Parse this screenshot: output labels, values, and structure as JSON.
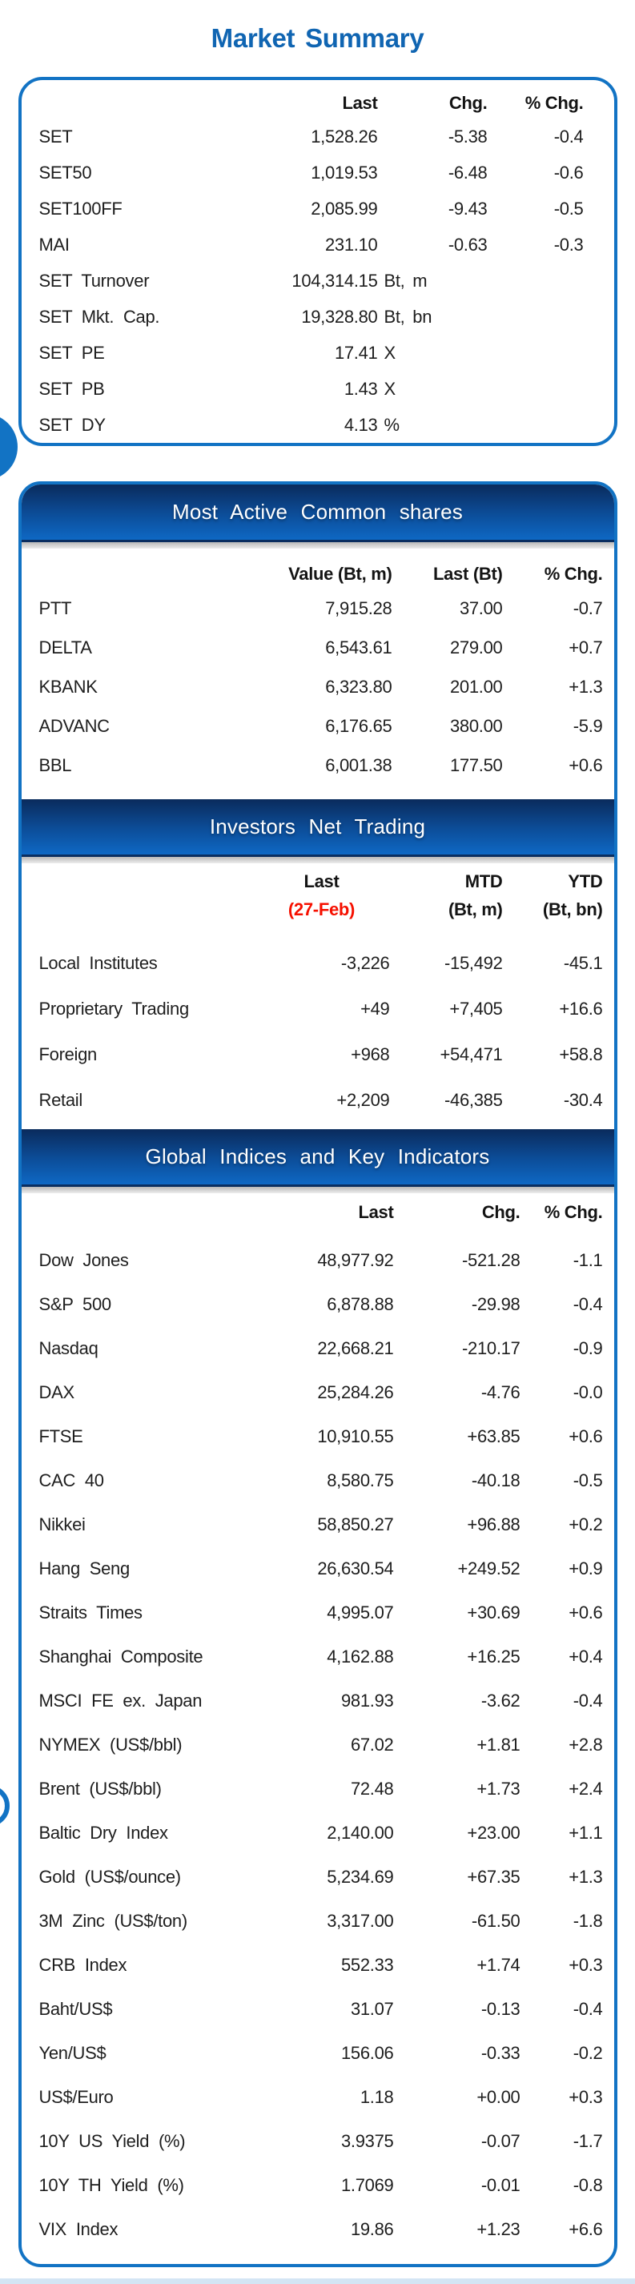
{
  "title": "Market Summary",
  "colors": {
    "accent_blue": "#1273c4",
    "title_blue": "#1065b2",
    "bar_gradient_top": "#0a2b5c",
    "bar_gradient_bottom": "#0e68c4",
    "date_red": "#f61000",
    "text": "#1e1e1e",
    "bottom_strip": "#d4e5f4"
  },
  "market_summary": {
    "columns": [
      "Last",
      "Chg.",
      "% Chg."
    ],
    "rows": [
      {
        "label": "SET",
        "v1": "1,528.26",
        "v2": "-5.38",
        "v3": "-0.4"
      },
      {
        "label": "SET50",
        "v1": "1,019.53",
        "v2": "-6.48",
        "v3": "-0.6"
      },
      {
        "label": "SET100FF",
        "v1": "2,085.99",
        "v2": "-9.43",
        "v3": "-0.5"
      },
      {
        "label": "MAI",
        "v1": "231.10",
        "v2": "-0.63",
        "v3": "-0.3"
      },
      {
        "label": "SET Turnover",
        "v1": "104,314.15",
        "unit": "Bt, m"
      },
      {
        "label": "SET Mkt. Cap.",
        "v1": "19,328.80",
        "unit": "Bt, bn"
      },
      {
        "label": "SET PE",
        "v1": "17.41",
        "unit": "X"
      },
      {
        "label": "SET PB",
        "v1": "1.43",
        "unit": "X"
      },
      {
        "label": "SET DY",
        "v1": "4.13",
        "unit": "%"
      }
    ]
  },
  "most_active": {
    "header": "Most Active Common shares",
    "columns": [
      "Value (Bt, m)",
      "Last (Bt)",
      "% Chg."
    ],
    "rows": [
      {
        "label": "PTT",
        "v1": "7,915.28",
        "v2": "37.00",
        "v3": "-0.7"
      },
      {
        "label": "DELTA",
        "v1": "6,543.61",
        "v2": "279.00",
        "v3": "+0.7"
      },
      {
        "label": "KBANK",
        "v1": "6,323.80",
        "v2": "201.00",
        "v3": "+1.3"
      },
      {
        "label": "ADVANC",
        "v1": "6,176.65",
        "v2": "380.00",
        "v3": "-5.9"
      },
      {
        "label": "BBL",
        "v1": "6,001.38",
        "v2": "177.50",
        "v3": "+0.6"
      }
    ]
  },
  "investors": {
    "header": "Investors Net Trading",
    "columns_line1": [
      "Last",
      "MTD",
      "YTD"
    ],
    "columns_line2": [
      "(27-Feb)",
      "(Bt, m)",
      "(Bt, bn)"
    ],
    "rows": [
      {
        "label": "Local Institutes",
        "v1": "-3,226",
        "v2": "-15,492",
        "v3": "-45.1"
      },
      {
        "label": "Proprietary Trading",
        "v1": "+49",
        "v2": "+7,405",
        "v3": "+16.6"
      },
      {
        "label": "Foreign",
        "v1": "+968",
        "v2": "+54,471",
        "v3": "+58.8"
      },
      {
        "label": "Retail",
        "v1": "+2,209",
        "v2": "-46,385",
        "v3": "-30.4"
      }
    ]
  },
  "global_indices": {
    "header": "Global Indices and Key Indicators",
    "columns": [
      "Last",
      "Chg.",
      "% Chg."
    ],
    "rows": [
      {
        "label": "Dow Jones",
        "v1": "48,977.92",
        "v2": "-521.28",
        "v3": "-1.1"
      },
      {
        "label": "S&P 500",
        "v1": "6,878.88",
        "v2": "-29.98",
        "v3": "-0.4"
      },
      {
        "label": "Nasdaq",
        "v1": "22,668.21",
        "v2": "-210.17",
        "v3": "-0.9"
      },
      {
        "label": "DAX",
        "v1": "25,284.26",
        "v2": "-4.76",
        "v3": "-0.0"
      },
      {
        "label": "FTSE",
        "v1": "10,910.55",
        "v2": "+63.85",
        "v3": "+0.6"
      },
      {
        "label": "CAC 40",
        "v1": "8,580.75",
        "v2": "-40.18",
        "v3": "-0.5"
      },
      {
        "label": "Nikkei",
        "v1": "58,850.27",
        "v2": "+96.88",
        "v3": "+0.2"
      },
      {
        "label": "Hang Seng",
        "v1": "26,630.54",
        "v2": "+249.52",
        "v3": "+0.9"
      },
      {
        "label": "Straits Times",
        "v1": "4,995.07",
        "v2": "+30.69",
        "v3": "+0.6"
      },
      {
        "label": "Shanghai Composite",
        "v1": "4,162.88",
        "v2": "+16.25",
        "v3": "+0.4"
      },
      {
        "label": "MSCI FE ex. Japan",
        "v1": "981.93",
        "v2": "-3.62",
        "v3": "-0.4"
      },
      {
        "label": "NYMEX (US$/bbl)",
        "v1": "67.02",
        "v2": "+1.81",
        "v3": "+2.8"
      },
      {
        "label": "Brent (US$/bbl)",
        "v1": "72.48",
        "v2": "+1.73",
        "v3": "+2.4"
      },
      {
        "label": "Baltic Dry Index",
        "v1": "2,140.00",
        "v2": "+23.00",
        "v3": "+1.1"
      },
      {
        "label": "Gold (US$/ounce)",
        "v1": "5,234.69",
        "v2": "+67.35",
        "v3": "+1.3"
      },
      {
        "label": "3M Zinc (US$/ton)",
        "v1": "3,317.00",
        "v2": "-61.50",
        "v3": "-1.8"
      },
      {
        "label": "CRB Index",
        "v1": "552.33",
        "v2": "+1.74",
        "v3": "+0.3"
      },
      {
        "label": "Baht/US$",
        "v1": "31.07",
        "v2": "-0.13",
        "v3": "-0.4"
      },
      {
        "label": "Yen/US$",
        "v1": "156.06",
        "v2": "-0.33",
        "v3": "-0.2"
      },
      {
        "label": "US$/Euro",
        "v1": "1.18",
        "v2": "+0.00",
        "v3": "+0.3"
      },
      {
        "label": "10Y US Yield (%)",
        "v1": "3.9375",
        "v2": "-0.07",
        "v3": "-1.7"
      },
      {
        "label": "10Y TH Yield (%)",
        "v1": "1.7069",
        "v2": "-0.01",
        "v3": "-0.8"
      },
      {
        "label": "VIX Index",
        "v1": "19.86",
        "v2": "+1.23",
        "v3": "+6.6"
      }
    ]
  }
}
